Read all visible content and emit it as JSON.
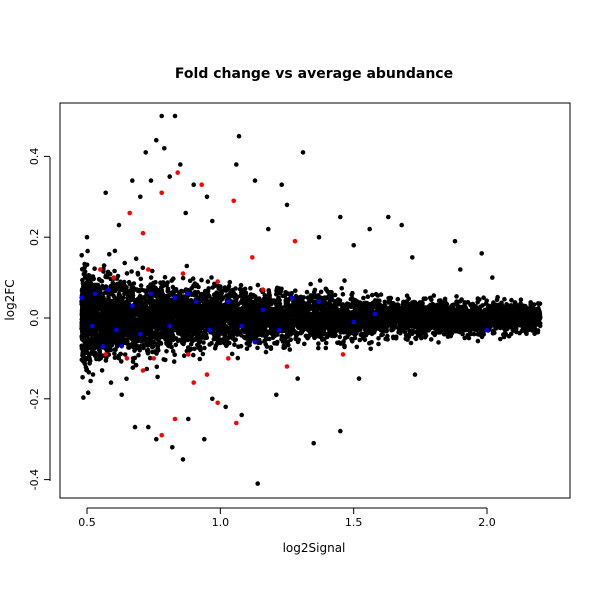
{
  "chart_data": {
    "type": "scatter",
    "title": "Fold change vs average abundance",
    "xlabel": "log2Signal",
    "ylabel": "log2FC",
    "xlim": [
      0.46,
      2.25
    ],
    "ylim": [
      -0.43,
      0.52
    ],
    "xticks": [
      0.5,
      1.0,
      1.5,
      2.0
    ],
    "xtick_labels": [
      "0.5",
      "1.0",
      "1.5",
      "2.0"
    ],
    "yticks": [
      -0.4,
      -0.2,
      0.0,
      0.2,
      0.4
    ],
    "ytick_labels": [
      "-0.4",
      "-0.2",
      "0.0",
      "0.2",
      "0.4"
    ],
    "grid": false,
    "legend": "none",
    "series": [
      {
        "color": "#000000",
        "points": [
          [
            0.78,
            0.5
          ],
          [
            0.83,
            0.5
          ],
          [
            0.76,
            0.44
          ],
          [
            0.79,
            0.42
          ],
          [
            0.72,
            0.41
          ],
          [
            0.85,
            0.38
          ],
          [
            1.07,
            0.45
          ],
          [
            1.06,
            0.38
          ],
          [
            1.31,
            0.41
          ],
          [
            0.74,
            0.34
          ],
          [
            0.81,
            0.35
          ],
          [
            0.9,
            0.33
          ],
          [
            0.95,
            0.3
          ],
          [
            1.13,
            0.34
          ],
          [
            1.23,
            0.33
          ],
          [
            0.57,
            0.31
          ],
          [
            0.67,
            0.34
          ],
          [
            0.7,
            0.3
          ],
          [
            1.25,
            0.28
          ],
          [
            1.45,
            0.25
          ],
          [
            1.63,
            0.25
          ],
          [
            1.68,
            0.23
          ],
          [
            1.88,
            0.19
          ],
          [
            1.98,
            0.16
          ],
          [
            1.56,
            0.22
          ],
          [
            0.5,
            0.2
          ],
          [
            0.62,
            0.23
          ],
          [
            1.5,
            0.18
          ],
          [
            1.9,
            0.12
          ],
          [
            2.02,
            0.1
          ],
          [
            0.87,
            0.26
          ],
          [
            0.97,
            0.24
          ],
          [
            1.18,
            0.22
          ],
          [
            1.37,
            0.2
          ],
          [
            1.72,
            0.15
          ],
          [
            0.76,
            -0.3
          ],
          [
            0.82,
            -0.32
          ],
          [
            0.94,
            -0.3
          ],
          [
            0.73,
            -0.27
          ],
          [
            0.68,
            -0.27
          ],
          [
            0.86,
            -0.35
          ],
          [
            1.14,
            -0.41
          ],
          [
            1.35,
            -0.31
          ],
          [
            1.45,
            -0.28
          ],
          [
            1.52,
            -0.15
          ],
          [
            1.73,
            -0.14
          ],
          [
            0.97,
            -0.2
          ],
          [
            1.02,
            -0.22
          ],
          [
            1.29,
            -0.15
          ],
          [
            0.59,
            -0.16
          ],
          [
            0.88,
            -0.25
          ],
          [
            1.08,
            -0.24
          ],
          [
            1.21,
            -0.19
          ],
          [
            0.63,
            -0.19
          ]
        ]
      },
      {
        "color": "#ff0000",
        "points": [
          [
            0.78,
            0.31
          ],
          [
            0.84,
            0.36
          ],
          [
            0.93,
            0.33
          ],
          [
            1.05,
            0.29
          ],
          [
            0.66,
            0.26
          ],
          [
            0.71,
            0.21
          ],
          [
            1.12,
            0.15
          ],
          [
            1.28,
            0.19
          ],
          [
            0.55,
            0.12
          ],
          [
            0.6,
            0.1
          ],
          [
            0.73,
            0.12
          ],
          [
            0.86,
            0.11
          ],
          [
            0.99,
            0.09
          ],
          [
            1.16,
            0.07
          ],
          [
            0.57,
            -0.09
          ],
          [
            0.65,
            -0.1
          ],
          [
            0.75,
            -0.1
          ],
          [
            0.88,
            -0.09
          ],
          [
            1.03,
            -0.1
          ],
          [
            1.25,
            -0.12
          ],
          [
            1.46,
            -0.09
          ],
          [
            0.71,
            -0.13
          ],
          [
            0.9,
            -0.16
          ],
          [
            0.95,
            -0.14
          ],
          [
            0.83,
            -0.25
          ],
          [
            0.78,
            -0.29
          ],
          [
            1.06,
            -0.26
          ],
          [
            0.99,
            -0.21
          ]
        ]
      },
      {
        "color": "#0000ff",
        "points": [
          [
            0.48,
            0.05
          ],
          [
            0.53,
            0.06
          ],
          [
            0.58,
            0.07
          ],
          [
            0.67,
            0.03
          ],
          [
            0.74,
            0.06
          ],
          [
            0.83,
            0.05
          ],
          [
            0.91,
            0.04
          ],
          [
            1.03,
            0.04
          ],
          [
            1.16,
            0.02
          ],
          [
            1.27,
            0.05
          ],
          [
            1.37,
            0.04
          ],
          [
            0.52,
            -0.02
          ],
          [
            0.61,
            -0.03
          ],
          [
            0.7,
            -0.04
          ],
          [
            0.81,
            -0.02
          ],
          [
            0.96,
            -0.03
          ],
          [
            1.08,
            -0.02
          ],
          [
            1.22,
            -0.03
          ],
          [
            1.5,
            -0.01
          ],
          [
            1.58,
            0.01
          ],
          [
            2.0,
            -0.03
          ],
          [
            0.56,
            -0.07
          ],
          [
            0.63,
            -0.07
          ],
          [
            1.13,
            -0.06
          ],
          [
            0.88,
            0.06
          ]
        ]
      }
    ]
  }
}
